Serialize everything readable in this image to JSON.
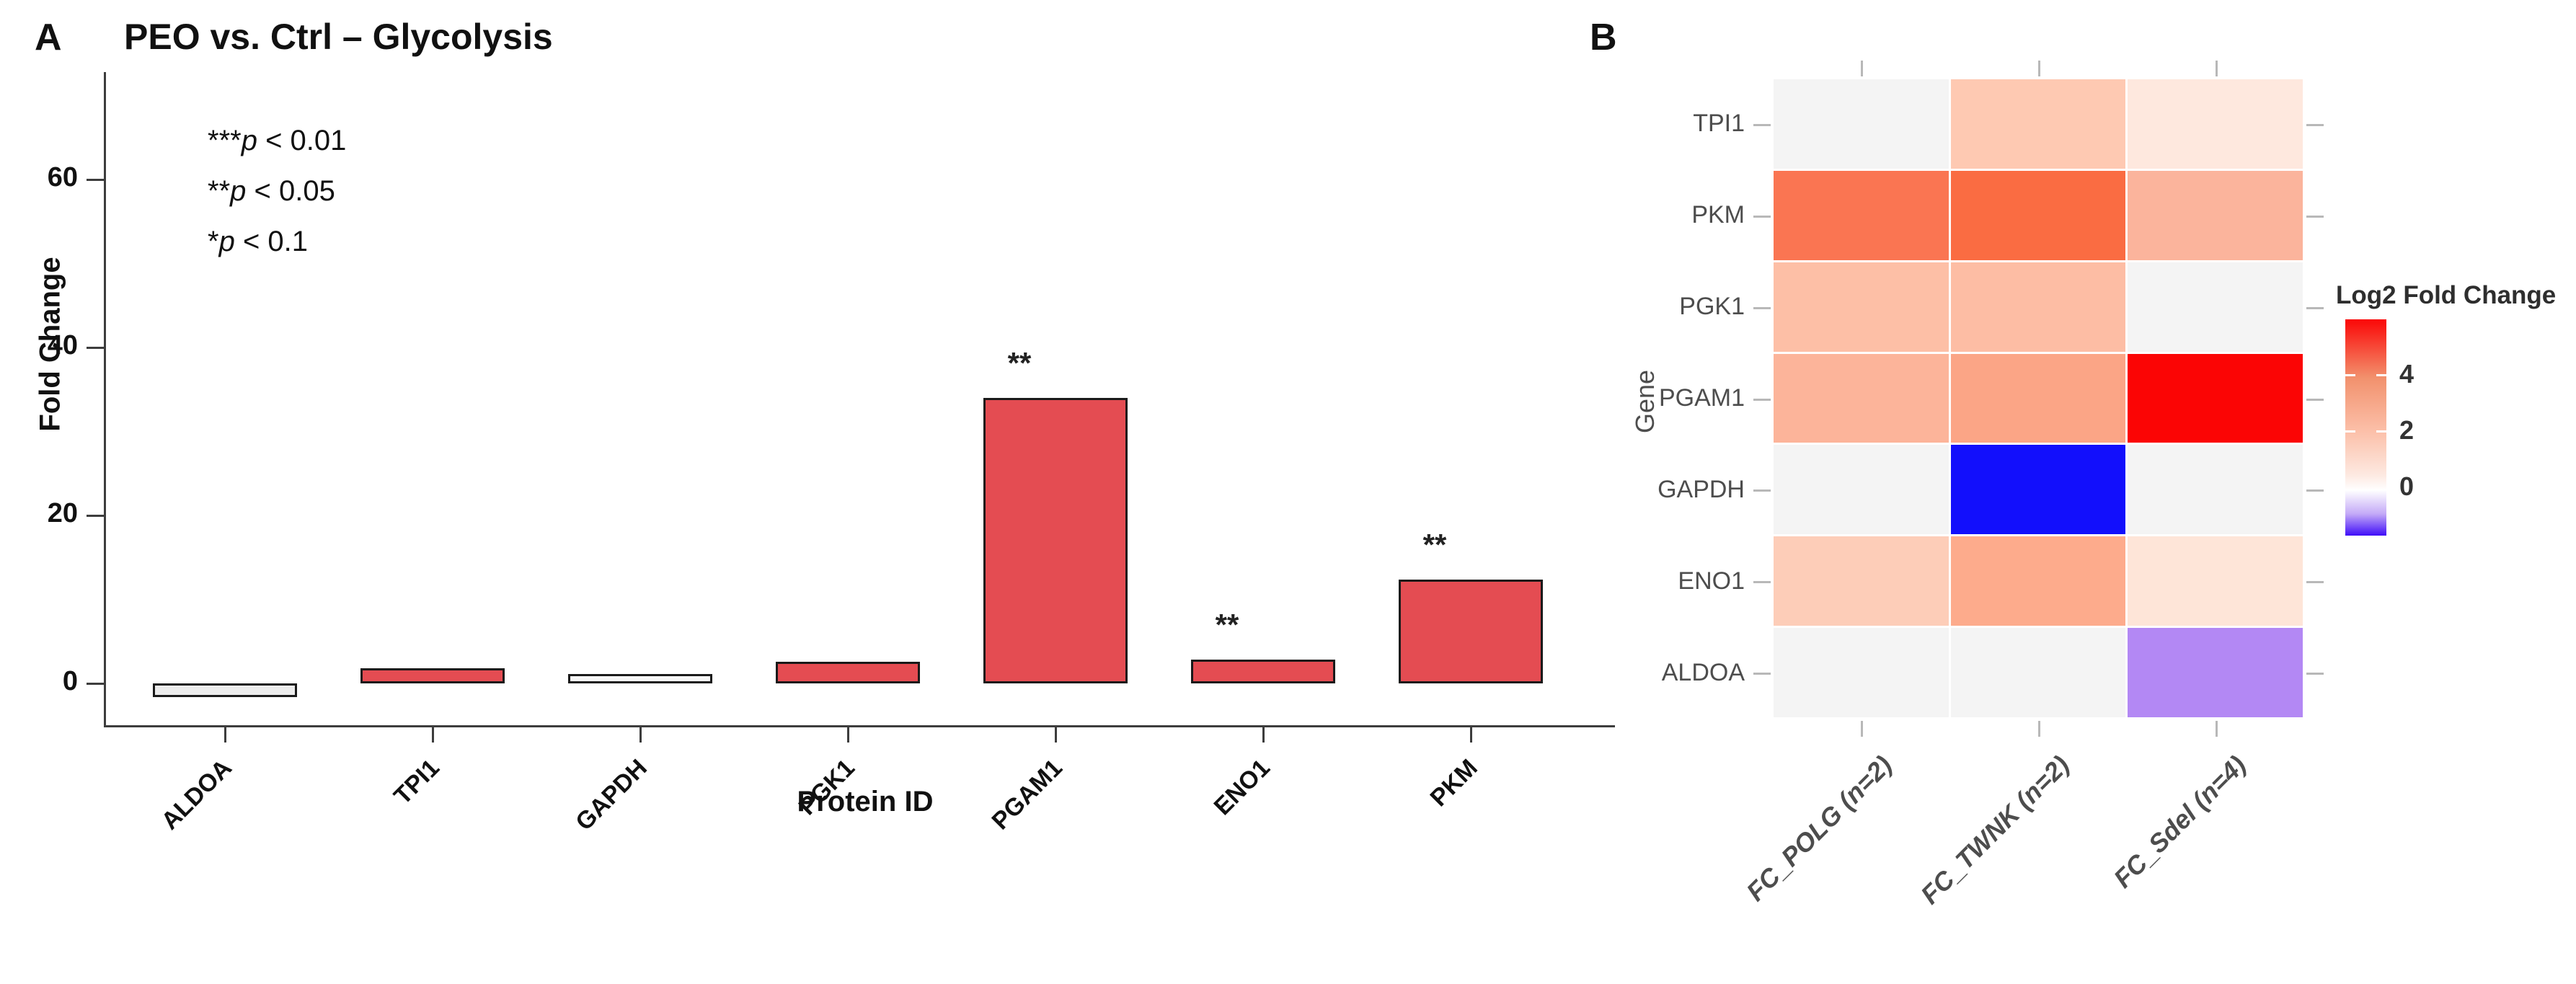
{
  "figure": {
    "panel_a": {
      "label": "A",
      "title": "PEO vs. Ctrl – Glycolysis",
      "significance_key": [
        {
          "stars": "***",
          "p": "p",
          "rest": " < 0.01"
        },
        {
          "stars": "**",
          "p": "p",
          "rest": " < 0.05"
        },
        {
          "stars": "*",
          "p": "p",
          "rest": " < 0.1"
        }
      ]
    },
    "panel_b": {
      "label": "B"
    }
  },
  "chart_data": [
    {
      "type": "bar",
      "title": "PEO vs. Ctrl – Glycolysis",
      "xlabel": "Protein ID",
      "ylabel": "Fold Change",
      "categories": [
        "ALDOA",
        "TPI1",
        "GAPDH",
        "PGK1",
        "PGAM1",
        "ENO1",
        "PKM"
      ],
      "values": [
        -1.6,
        1.8,
        1.1,
        2.6,
        34,
        2.8,
        12.4
      ],
      "significance": [
        "",
        "",
        "",
        "",
        "**",
        "**",
        "**"
      ],
      "bar_colors": [
        "#ececec",
        "#e44c52",
        "#f7f7f7",
        "#e44c52",
        "#e44c52",
        "#e44c52",
        "#e44c52"
      ],
      "bar_border_color": "#1a1a1a",
      "yticks": [
        0,
        20,
        40,
        60
      ],
      "ylim": [
        -5,
        73
      ],
      "grid": false,
      "annotations": [
        "***p < 0.01",
        "**p < 0.05",
        "*p < 0.1"
      ]
    },
    {
      "type": "heatmap",
      "ylabel": "Gene",
      "rows": [
        "TPI1",
        "PKM",
        "PGK1",
        "PGAM1",
        "GAPDH",
        "ENO1",
        "ALDOA"
      ],
      "columns": [
        "FC_POLG (n=2)",
        "FC_TWNK (n=2)",
        "FC_Sdel (n=4)"
      ],
      "values": [
        [
          null,
          1.7,
          0.6
        ],
        [
          4.5,
          4.7,
          2.2
        ],
        [
          1.9,
          2.0,
          null
        ],
        [
          2.2,
          2.8,
          6.0
        ],
        [
          null,
          -1.7,
          null
        ],
        [
          1.6,
          2.6,
          0.8
        ],
        [
          null,
          null,
          -1.0
        ]
      ],
      "cell_colors": [
        [
          "#f4f4f4",
          "#fec9b2",
          "#fee8de"
        ],
        [
          "#fa7552",
          "#fa6c42",
          "#fbb49c"
        ],
        [
          "#fdbfa6",
          "#fdbda4",
          "#f4f4f4"
        ],
        [
          "#fcb49a",
          "#fba586",
          "#fb0505"
        ],
        [
          "#f4f4f4",
          "#120ffc",
          "#f4f4f4"
        ],
        [
          "#fdcdb8",
          "#fdab8c",
          "#fee5d8"
        ],
        [
          "#f4f4f4",
          "#f4f4f4",
          "#b388f4"
        ]
      ],
      "na_color": "#f4f4f4",
      "legend": {
        "title": "Log2 Fold Change",
        "ticks": [
          4,
          2,
          0
        ],
        "range": [
          -1.7,
          6
        ],
        "position": "right",
        "gradient": [
          {
            "offset": 0.0,
            "color": "#fb0707"
          },
          {
            "offset": 0.27,
            "color": "#f2916d"
          },
          {
            "offset": 0.53,
            "color": "#fcc2ac"
          },
          {
            "offset": 0.72,
            "color": "#fde9e1"
          },
          {
            "offset": 0.79,
            "color": "#ffffff"
          },
          {
            "offset": 0.9,
            "color": "#c3a9f7"
          },
          {
            "offset": 1.0,
            "color": "#3f0df8"
          }
        ]
      }
    }
  ]
}
